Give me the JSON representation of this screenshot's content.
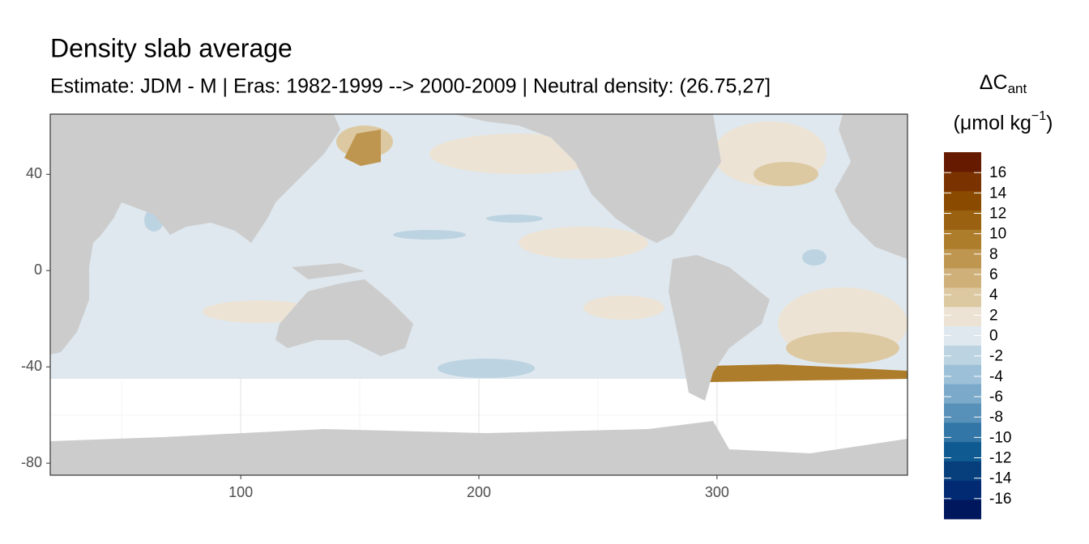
{
  "chart_data": {
    "type": "map",
    "title": "Density slab average",
    "subtitle": "Estimate: JDM - M | Eras: 1982-1999 --> 2000-2009 | Neutral density: (26.75,27]",
    "xlim": [
      20,
      380
    ],
    "xticks": [
      100,
      200,
      300
    ],
    "ylim": [
      -85,
      65
    ],
    "yticks": [
      -80,
      -40,
      0,
      40
    ],
    "grid": true,
    "legend": {
      "title": "ΔC",
      "title_sub": "ant",
      "unit": "(μmol kg",
      "unit_sup": "−1",
      "unit_end": ")",
      "limits": [
        -18,
        18
      ],
      "breaks": [
        -16,
        -14,
        -12,
        -10,
        -8,
        -6,
        -4,
        -2,
        0,
        2,
        4,
        6,
        8,
        10,
        12,
        14,
        16
      ],
      "colors": [
        "#00175e",
        "#022a72",
        "#063f7c",
        "#0f5a91",
        "#3176a6",
        "#5790b8",
        "#7aa9c9",
        "#9cc0d8",
        "#bcd3e2",
        "#dfe8ee",
        "#ece3d5",
        "#ddc9a1",
        "#cfb079",
        "#bf9650",
        "#ad7d2c",
        "#9a6210",
        "#8a4a00",
        "#7a3300",
        "#661a00"
      ]
    }
  }
}
